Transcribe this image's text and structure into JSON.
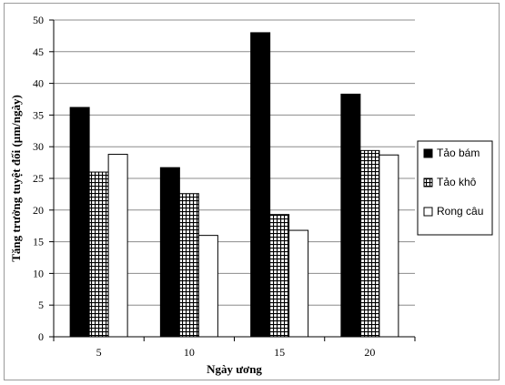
{
  "chart_data": {
    "type": "bar",
    "categories": [
      "5",
      "10",
      "15",
      "20"
    ],
    "series": [
      {
        "name": "Tảo bám",
        "values": [
          36.2,
          26.7,
          48.0,
          38.3
        ],
        "fill": "#000000",
        "pattern": "solid"
      },
      {
        "name": "Tảo khô",
        "values": [
          26.0,
          22.6,
          19.3,
          29.4
        ],
        "fill": "#ffffff",
        "pattern": "grid"
      },
      {
        "name": "Rong câu",
        "values": [
          28.8,
          16.0,
          16.8,
          28.7
        ],
        "fill": "#ffffff",
        "pattern": "none"
      }
    ],
    "xlabel": "Ngày ương",
    "ylabel": "Tăng trưởng tuyệt đối (µm/ngày)",
    "ylim": [
      0,
      50
    ],
    "yticks": [
      "0",
      "5",
      "10",
      "15",
      "20",
      "25",
      "30",
      "35",
      "40",
      "45",
      "50"
    ],
    "grid": true,
    "legend_position": "right"
  }
}
